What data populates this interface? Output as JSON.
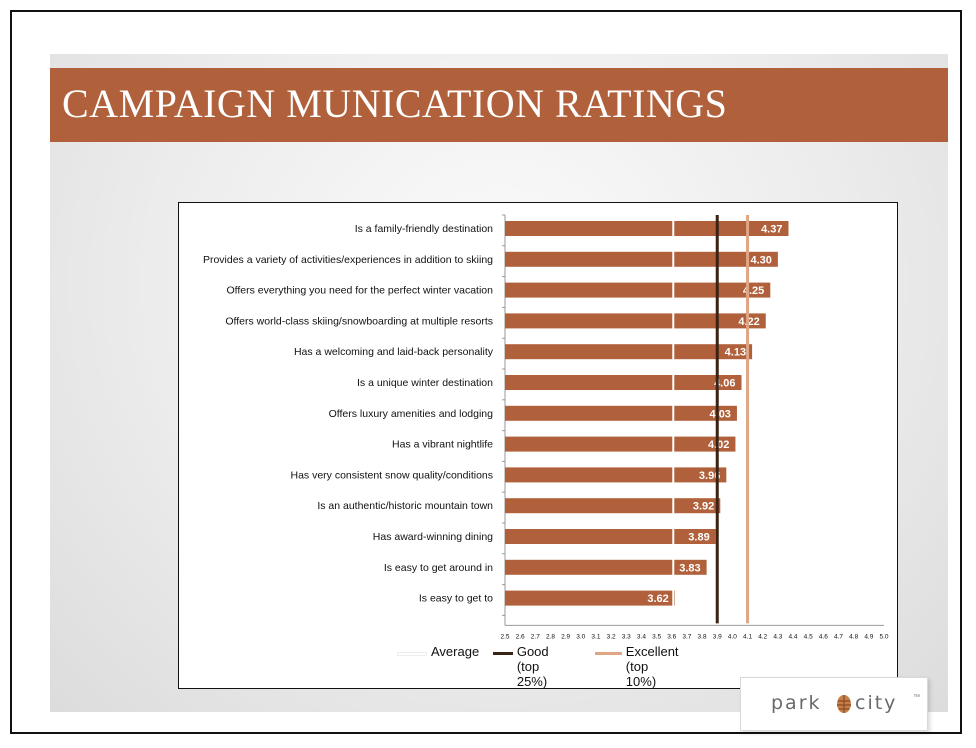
{
  "title": "CAMPAIGN MUNICATION RATINGS",
  "brand": {
    "left": "park",
    "right": "city",
    "tm": "™"
  },
  "colors": {
    "bar": "#b0603a",
    "band": "#b0603a",
    "average": "#ffffff",
    "good": "#3b2314",
    "excellent": "#dfa584"
  },
  "legend": [
    {
      "key": "average",
      "line1": "Average",
      "line2": ""
    },
    {
      "key": "good",
      "line1": "Good",
      "line2": "(top 25%)"
    },
    {
      "key": "excellent",
      "line1": "Excellent",
      "line2": "(top 10%)"
    }
  ],
  "chart_data": {
    "type": "bar",
    "orientation": "horizontal",
    "title": "",
    "xlabel": "",
    "ylabel": "",
    "xlim": [
      2.5,
      5.0
    ],
    "x_ticks": [
      "2.5",
      "2.6",
      "2.7",
      "2.8",
      "2.9",
      "3.0",
      "3.1",
      "3.2",
      "3.3",
      "3.4",
      "3.5",
      "3.6",
      "3.7",
      "3.8",
      "3.9",
      "4.0",
      "4.1",
      "4.2",
      "4.3",
      "4.4",
      "4.5",
      "4.6",
      "4.7",
      "4.8",
      "4.9",
      "5.0"
    ],
    "categories": [
      "Is a family-friendly destination",
      "Provides a variety of activities/experiences in addition to skiing",
      "Offers everything you need for the perfect winter vacation",
      "Offers world-class skiing/snowboarding at multiple resorts",
      "Has a welcoming and laid-back personality",
      "Is a unique winter destination",
      "Offers luxury amenities and lodging",
      "Has a vibrant nightlife",
      "Has very consistent snow quality/conditions",
      "Is an authentic/historic mountain town",
      "Has award-winning dining",
      "Is easy to get around in",
      "Is easy to get to"
    ],
    "values": [
      4.37,
      4.3,
      4.25,
      4.22,
      4.13,
      4.06,
      4.03,
      4.02,
      3.96,
      3.92,
      3.89,
      3.83,
      3.62
    ],
    "labels": [
      "4.37",
      "4.30",
      "4.25",
      "4.22",
      "4.13",
      "4.06",
      "4.03",
      "4.02",
      "3.96",
      "3.92",
      "3.89",
      "3.83",
      "3.62"
    ],
    "reference_lines": [
      {
        "key": "average",
        "value": 3.61
      },
      {
        "key": "good",
        "value": 3.9
      },
      {
        "key": "excellent",
        "value": 4.1
      }
    ],
    "grid": false,
    "legend_position": "bottom"
  }
}
